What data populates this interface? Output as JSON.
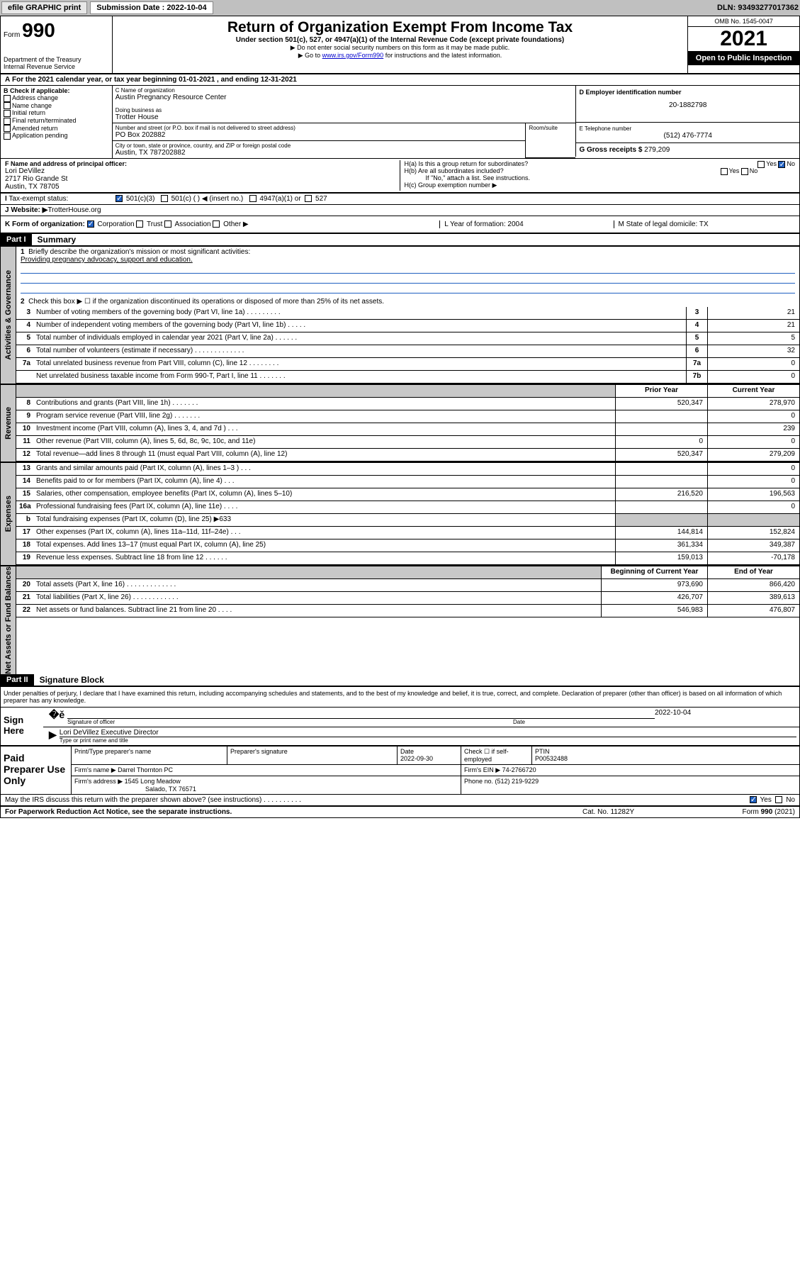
{
  "topbar": {
    "efile": "efile GRAPHIC print",
    "submission_label": "Submission Date : 2022-10-04",
    "dln": "DLN: 93493277017362"
  },
  "header": {
    "form_label": "Form",
    "form_no": "990",
    "dept": "Department of the Treasury",
    "irs": "Internal Revenue Service",
    "title": "Return of Organization Exempt From Income Tax",
    "subtitle": "Under section 501(c), 527, or 4947(a)(1) of the Internal Revenue Code (except private foundations)",
    "note1": "▶ Do not enter social security numbers on this form as it may be made public.",
    "note2_pre": "▶ Go to ",
    "note2_link": "www.irs.gov/Form990",
    "note2_post": " for instructions and the latest information.",
    "omb": "OMB No. 1545-0047",
    "year": "2021",
    "inspection": "Open to Public Inspection"
  },
  "period": {
    "a": "A",
    "text": " For the 2021 calendar year, or tax year beginning 01-01-2021     , and ending 12-31-2021"
  },
  "col_b": {
    "label": "B Check if applicable:",
    "items": [
      "Address change",
      "Name change",
      "Initial return",
      "Final return/terminated",
      "Amended return",
      "Application pending"
    ]
  },
  "col_c": {
    "name_label": "C Name of organization",
    "name": "Austin Pregnancy Resource Center",
    "dba_label": "Doing business as",
    "dba": "Trotter House",
    "addr_label": "Number and street (or P.O. box if mail is not delivered to street address)",
    "addr": "PO Box 202882",
    "room_label": "Room/suite",
    "city_label": "City or town, state or province, country, and ZIP or foreign postal code",
    "city": "Austin, TX  787202882"
  },
  "col_d": {
    "ein_label": "D Employer identification number",
    "ein": "20-1882798",
    "phone_label": "E Telephone number",
    "phone": "(512) 476-7774",
    "gross_label": "G Gross receipts $ ",
    "gross": "279,209"
  },
  "row_f": {
    "label": "F Name and address of principal officer:",
    "name": "Lori DeVillez",
    "addr1": "2717 Rio Grande St",
    "addr2": "Austin, TX  78705"
  },
  "row_h": {
    "a": "H(a)  Is this a group return for subordinates?",
    "b": "H(b)  Are all subordinates included?",
    "b_note": "If \"No,\" attach a list. See instructions.",
    "c": "H(c)  Group exemption number ▶"
  },
  "row_i": {
    "label": "Tax-exempt status:",
    "opts": [
      "501(c)(3)",
      "501(c) (  ) ◀ (insert no.)",
      "4947(a)(1) or",
      "527"
    ]
  },
  "row_j": {
    "label": "Website: ▶ ",
    "val": "TrotterHouse.org"
  },
  "row_k": {
    "label": "K Form of organization:",
    "opts": [
      "Corporation",
      "Trust",
      "Association",
      "Other ▶"
    ],
    "l": "L Year of formation: 2004",
    "m": "M State of legal domicile: TX"
  },
  "part1": {
    "header": "Part I",
    "title": "Summary",
    "l1": "Briefly describe the organization's mission or most significant activities:",
    "l1_val": "Providing pregnancy advocacy, support and education.",
    "l2": "Check this box ▶ ☐  if the organization discontinued its operations or disposed of more than 25% of its net assets.",
    "lines_gov": [
      {
        "n": "3",
        "t": "Number of voting members of the governing body (Part VI, line 1a)   .    .    .    .    .    .    .    .    .",
        "box": "3",
        "v": "21"
      },
      {
        "n": "4",
        "t": "Number of independent voting members of the governing body (Part VI, line 1b)    .    .    .    .    .",
        "box": "4",
        "v": "21"
      },
      {
        "n": "5",
        "t": "Total number of individuals employed in calendar year 2021 (Part V, line 2a)    .    .    .    .    .    .",
        "box": "5",
        "v": "5"
      },
      {
        "n": "6",
        "t": "Total number of volunteers (estimate if necessary)    .    .    .    .    .    .    .    .    .    .    .    .    .",
        "box": "6",
        "v": "32"
      },
      {
        "n": "7a",
        "t": "Total unrelated business revenue from Part VIII, column (C), line 12    .    .    .    .    .    .    .    .",
        "box": "7a",
        "v": "0"
      },
      {
        "n": "",
        "t": "Net unrelated business taxable income from Form 990-T, Part I, line 11    .    .    .    .    .    .    .",
        "box": "7b",
        "v": "0"
      }
    ],
    "col_py": "Prior Year",
    "col_cy": "Current Year",
    "lines_rev": [
      {
        "n": "8",
        "t": "Contributions and grants (Part VIII, line 1h)    .    .    .    .    .    .    .",
        "py": "520,347",
        "cy": "278,970"
      },
      {
        "n": "9",
        "t": "Program service revenue (Part VIII, line 2g)    .    .    .    .    .    .    .",
        "py": "",
        "cy": "0"
      },
      {
        "n": "10",
        "t": "Investment income (Part VIII, column (A), lines 3, 4, and 7d )    .    .    .",
        "py": "",
        "cy": "239"
      },
      {
        "n": "11",
        "t": "Other revenue (Part VIII, column (A), lines 5, 6d, 8c, 9c, 10c, and 11e)",
        "py": "0",
        "cy": "0"
      },
      {
        "n": "12",
        "t": "Total revenue—add lines 8 through 11 (must equal Part VIII, column (A), line 12)",
        "py": "520,347",
        "cy": "279,209"
      }
    ],
    "lines_exp": [
      {
        "n": "13",
        "t": "Grants and similar amounts paid (Part IX, column (A), lines 1–3 )    .    .    .",
        "py": "",
        "cy": "0"
      },
      {
        "n": "14",
        "t": "Benefits paid to or for members (Part IX, column (A), line 4)    .    .    .",
        "py": "",
        "cy": "0"
      },
      {
        "n": "15",
        "t": "Salaries, other compensation, employee benefits (Part IX, column (A), lines 5–10)",
        "py": "216,520",
        "cy": "196,563"
      },
      {
        "n": "16a",
        "t": "Professional fundraising fees (Part IX, column (A), line 11e)    .    .    .    .",
        "py": "",
        "cy": "0"
      },
      {
        "n": "b",
        "t": "Total fundraising expenses (Part IX, column (D), line 25) ▶633",
        "py": "shaded",
        "cy": "shaded"
      },
      {
        "n": "17",
        "t": "Other expenses (Part IX, column (A), lines 11a–11d, 11f–24e)    .    .    .",
        "py": "144,814",
        "cy": "152,824"
      },
      {
        "n": "18",
        "t": "Total expenses. Add lines 13–17 (must equal Part IX, column (A), line 25)",
        "py": "361,334",
        "cy": "349,387"
      },
      {
        "n": "19",
        "t": "Revenue less expenses. Subtract line 18 from line 12    .    .    .    .    .    .",
        "py": "159,013",
        "cy": "-70,178"
      }
    ],
    "col_boy": "Beginning of Current Year",
    "col_eoy": "End of Year",
    "lines_net": [
      {
        "n": "20",
        "t": "Total assets (Part X, line 16)    .    .    .    .    .    .    .    .    .    .    .    .    .",
        "py": "973,690",
        "cy": "866,420"
      },
      {
        "n": "21",
        "t": "Total liabilities (Part X, line 26)    .    .    .    .    .    .    .    .    .    .    .    .",
        "py": "426,707",
        "cy": "389,613"
      },
      {
        "n": "22",
        "t": "Net assets or fund balances. Subtract line 21 from line 20    .    .    .    .",
        "py": "546,983",
        "cy": "476,807"
      }
    ]
  },
  "part2": {
    "header": "Part II",
    "title": "Signature Block",
    "decl": "Under penalties of perjury, I declare that I have examined this return, including accompanying schedules and statements, and to the best of my knowledge and belief, it is true, correct, and complete. Declaration of preparer (other than officer) is based on all information of which preparer has any knowledge."
  },
  "sign": {
    "label": "Sign Here",
    "sig_label": "Signature of officer",
    "date": "2022-10-04",
    "date_label": "Date",
    "name": "Lori DeVillez  Executive Director",
    "name_label": "Type or print name and title"
  },
  "prep": {
    "label": "Paid Preparer Use Only",
    "h1": "Print/Type preparer's name",
    "h2": "Preparer's signature",
    "h3": "Date",
    "date": "2022-09-30",
    "h4": "Check ☐ if self-employed",
    "h5": "PTIN",
    "ptin": "P00532488",
    "firm_label": "Firm's name       ▶ ",
    "firm": "Darrel Thornton PC",
    "ein_label": "Firm's EIN ▶ ",
    "ein": "74-2766720",
    "addr_label": "Firm's address  ▶ ",
    "addr1": "1545 Long Meadow",
    "addr2": "Salado, TX  76571",
    "phone_label": "Phone no. ",
    "phone": "(512) 219-9229"
  },
  "discuss": {
    "text": "May the IRS discuss this return with the preparer shown above? (see instructions)    .    .    .    .    .    .    .    .    .    .",
    "yes": "Yes",
    "no": "No"
  },
  "footer": {
    "left": "For Paperwork Reduction Act Notice, see the separate instructions.",
    "mid": "Cat. No. 11282Y",
    "right": "Form 990 (2021)"
  },
  "vtabs": {
    "gov": "Activities & Governance",
    "rev": "Revenue",
    "exp": "Expenses",
    "net": "Net Assets or Fund Balances"
  }
}
